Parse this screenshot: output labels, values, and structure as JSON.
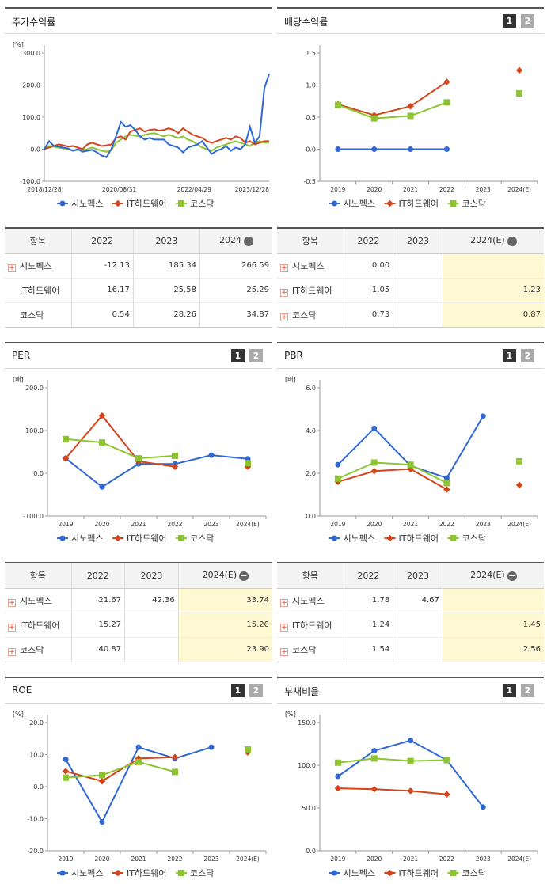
{
  "legend_names": [
    "시노펙스",
    "IT하드웨어",
    "코스닥"
  ],
  "colors": {
    "s1": "#2f67d3",
    "s2": "#d5441b",
    "s3": "#8cc531"
  },
  "pills": [
    "1",
    "2"
  ],
  "panels": {
    "stock": {
      "title": "주가수익률",
      "unit": "[%]"
    },
    "div": {
      "title": "배당수익률"
    },
    "per": {
      "title": "PER",
      "unit": "[배]"
    },
    "pbr": {
      "title": "PBR",
      "unit": "[배]"
    },
    "roe": {
      "title": "ROE",
      "unit": "[%]"
    },
    "debt": {
      "title": "부채비율",
      "unit": "[%]"
    }
  },
  "tables": {
    "stock": {
      "headers": [
        "항목",
        "2022",
        "2023",
        "2024"
      ],
      "rows": [
        [
          "시노펙스",
          "-12.13",
          "185.34",
          "266.59"
        ],
        [
          "IT하드웨어",
          "16.17",
          "25.58",
          "25.29"
        ],
        [
          "코스닥",
          "0.54",
          "28.26",
          "34.87"
        ]
      ]
    },
    "div": {
      "headers": [
        "항목",
        "2022",
        "2023",
        "2024(E)"
      ],
      "rows": [
        [
          "시노펙스",
          "0.00",
          "",
          ""
        ],
        [
          "IT하드웨어",
          "1.05",
          "",
          "1.23"
        ],
        [
          "코스닥",
          "0.73",
          "",
          "0.87"
        ]
      ]
    },
    "per": {
      "headers": [
        "항목",
        "2022",
        "2023",
        "2024(E)"
      ],
      "rows": [
        [
          "시노펙스",
          "21.67",
          "42.36",
          "33.74"
        ],
        [
          "IT하드웨어",
          "15.27",
          "",
          "15.20"
        ],
        [
          "코스닥",
          "40.87",
          "",
          "23.90"
        ]
      ]
    },
    "pbr": {
      "headers": [
        "항목",
        "2022",
        "2023",
        "2024(E)"
      ],
      "rows": [
        [
          "시노펙스",
          "1.78",
          "4.67",
          ""
        ],
        [
          "IT하드웨어",
          "1.24",
          "",
          "1.45"
        ],
        [
          "코스닥",
          "1.54",
          "",
          "2.56"
        ]
      ]
    }
  },
  "chart_data": [
    {
      "id": "stock",
      "type": "line",
      "title": "주가수익률",
      "ylabel": "[%]",
      "ylim": [
        -100,
        300
      ],
      "yticks": [
        "300.0",
        "200.0",
        "100.0",
        "0.0",
        "-100.0"
      ],
      "xticks": [
        "2018/12/28",
        "2020/08/31",
        "2022/04/29",
        "2023/12/28"
      ],
      "series": [
        {
          "name": "시노펙스",
          "values": [
            0,
            25,
            10,
            8,
            5,
            2,
            -5,
            0,
            -8,
            -5,
            -2,
            -10,
            -20,
            -25,
            0,
            40,
            85,
            70,
            75,
            60,
            40,
            30,
            35,
            30,
            30,
            30,
            15,
            10,
            5,
            -10,
            5,
            10,
            15,
            25,
            5,
            -15,
            -5,
            0,
            10,
            -5,
            5,
            0,
            15,
            70,
            20,
            40,
            190,
            235
          ]
        },
        {
          "name": "IT하드웨어",
          "values": [
            0,
            5,
            10,
            15,
            12,
            8,
            10,
            5,
            0,
            15,
            20,
            15,
            10,
            12,
            15,
            35,
            40,
            30,
            55,
            60,
            65,
            55,
            60,
            62,
            58,
            60,
            65,
            60,
            50,
            65,
            55,
            45,
            40,
            35,
            25,
            20,
            25,
            30,
            35,
            30,
            40,
            35,
            20,
            25,
            15,
            20,
            25,
            25
          ]
        },
        {
          "name": "코스닥",
          "values": [
            0,
            10,
            8,
            5,
            2,
            0,
            -5,
            -2,
            -3,
            0,
            5,
            0,
            -5,
            -8,
            -3,
            20,
            30,
            40,
            45,
            42,
            40,
            45,
            48,
            50,
            45,
            40,
            45,
            40,
            35,
            40,
            30,
            25,
            15,
            5,
            0,
            -5,
            5,
            10,
            15,
            20,
            25,
            20,
            15,
            10,
            20,
            25,
            20,
            22
          ]
        }
      ]
    },
    {
      "id": "div",
      "type": "line",
      "ylim": [
        -0.5,
        1.5
      ],
      "yticks": [
        "1.5",
        "1.0",
        "0.5",
        "0.0",
        "-0.5"
      ],
      "categories": [
        "2019",
        "2020",
        "2021",
        "2022",
        "2023",
        "2024(E)"
      ],
      "series": [
        {
          "name": "시노펙스",
          "values": [
            0.0,
            0.0,
            0.0,
            0.0,
            null,
            null
          ]
        },
        {
          "name": "IT하드웨어",
          "values": [
            0.7,
            0.53,
            0.67,
            1.05,
            null,
            1.23
          ]
        },
        {
          "name": "코스닥",
          "values": [
            0.69,
            0.48,
            0.52,
            0.73,
            null,
            0.87
          ]
        }
      ]
    },
    {
      "id": "per",
      "type": "line",
      "ylabel": "[배]",
      "ylim": [
        -100,
        200
      ],
      "yticks": [
        "200.0",
        "100.0",
        "0.0",
        "-100.0"
      ],
      "categories": [
        "2019",
        "2020",
        "2021",
        "2022",
        "2023",
        "2024(E)"
      ],
      "series": [
        {
          "name": "시노펙스",
          "values": [
            35,
            -32,
            22,
            21.67,
            42.36,
            33.74
          ]
        },
        {
          "name": "IT하드웨어",
          "values": [
            35,
            135,
            28,
            15.27,
            null,
            15.2
          ]
        },
        {
          "name": "코스닥",
          "values": [
            80,
            72,
            35,
            40.87,
            null,
            23.9
          ]
        }
      ]
    },
    {
      "id": "pbr",
      "type": "line",
      "ylabel": "[배]",
      "ylim": [
        0,
        6
      ],
      "yticks": [
        "6.0",
        "4.0",
        "2.0",
        "0.0"
      ],
      "categories": [
        "2019",
        "2020",
        "2021",
        "2022",
        "2023",
        "2024(E)"
      ],
      "series": [
        {
          "name": "시노펙스",
          "values": [
            2.4,
            4.1,
            2.35,
            1.78,
            4.67,
            null
          ]
        },
        {
          "name": "IT하드웨어",
          "values": [
            1.6,
            2.1,
            2.2,
            1.24,
            null,
            1.45
          ]
        },
        {
          "name": "코스닥",
          "values": [
            1.75,
            2.5,
            2.4,
            1.54,
            null,
            2.56
          ]
        }
      ]
    },
    {
      "id": "roe",
      "type": "line",
      "ylabel": "[%]",
      "ylim": [
        -20,
        20
      ],
      "yticks": [
        "20.0",
        "10.0",
        "0.0",
        "-10.0",
        "-20.0"
      ],
      "categories": [
        "2019",
        "2020",
        "2021",
        "2022",
        "2023",
        "2024(E)"
      ],
      "series": [
        {
          "name": "시노펙스",
          "values": [
            8.5,
            -11,
            12.3,
            8.8,
            12.3,
            null
          ]
        },
        {
          "name": "IT하드웨어",
          "values": [
            4.8,
            1.7,
            8.8,
            9.2,
            null,
            10.7
          ]
        },
        {
          "name": "코스닥",
          "values": [
            2.8,
            3.6,
            7.7,
            4.6,
            null,
            11.6
          ]
        }
      ]
    },
    {
      "id": "debt",
      "type": "line",
      "ylabel": "[%]",
      "ylim": [
        0,
        150
      ],
      "yticks": [
        "150.0",
        "100.0",
        "50.0",
        "0.0"
      ],
      "categories": [
        "2019",
        "2020",
        "2021",
        "2022",
        "2023",
        "2024(E)"
      ],
      "series": [
        {
          "name": "시노펙스",
          "values": [
            87,
            117,
            129,
            106,
            51,
            null
          ]
        },
        {
          "name": "IT하드웨어",
          "values": [
            73,
            72,
            70,
            66,
            null,
            null
          ]
        },
        {
          "name": "코스닥",
          "values": [
            103,
            108,
            105,
            106,
            null,
            null
          ]
        }
      ]
    }
  ]
}
